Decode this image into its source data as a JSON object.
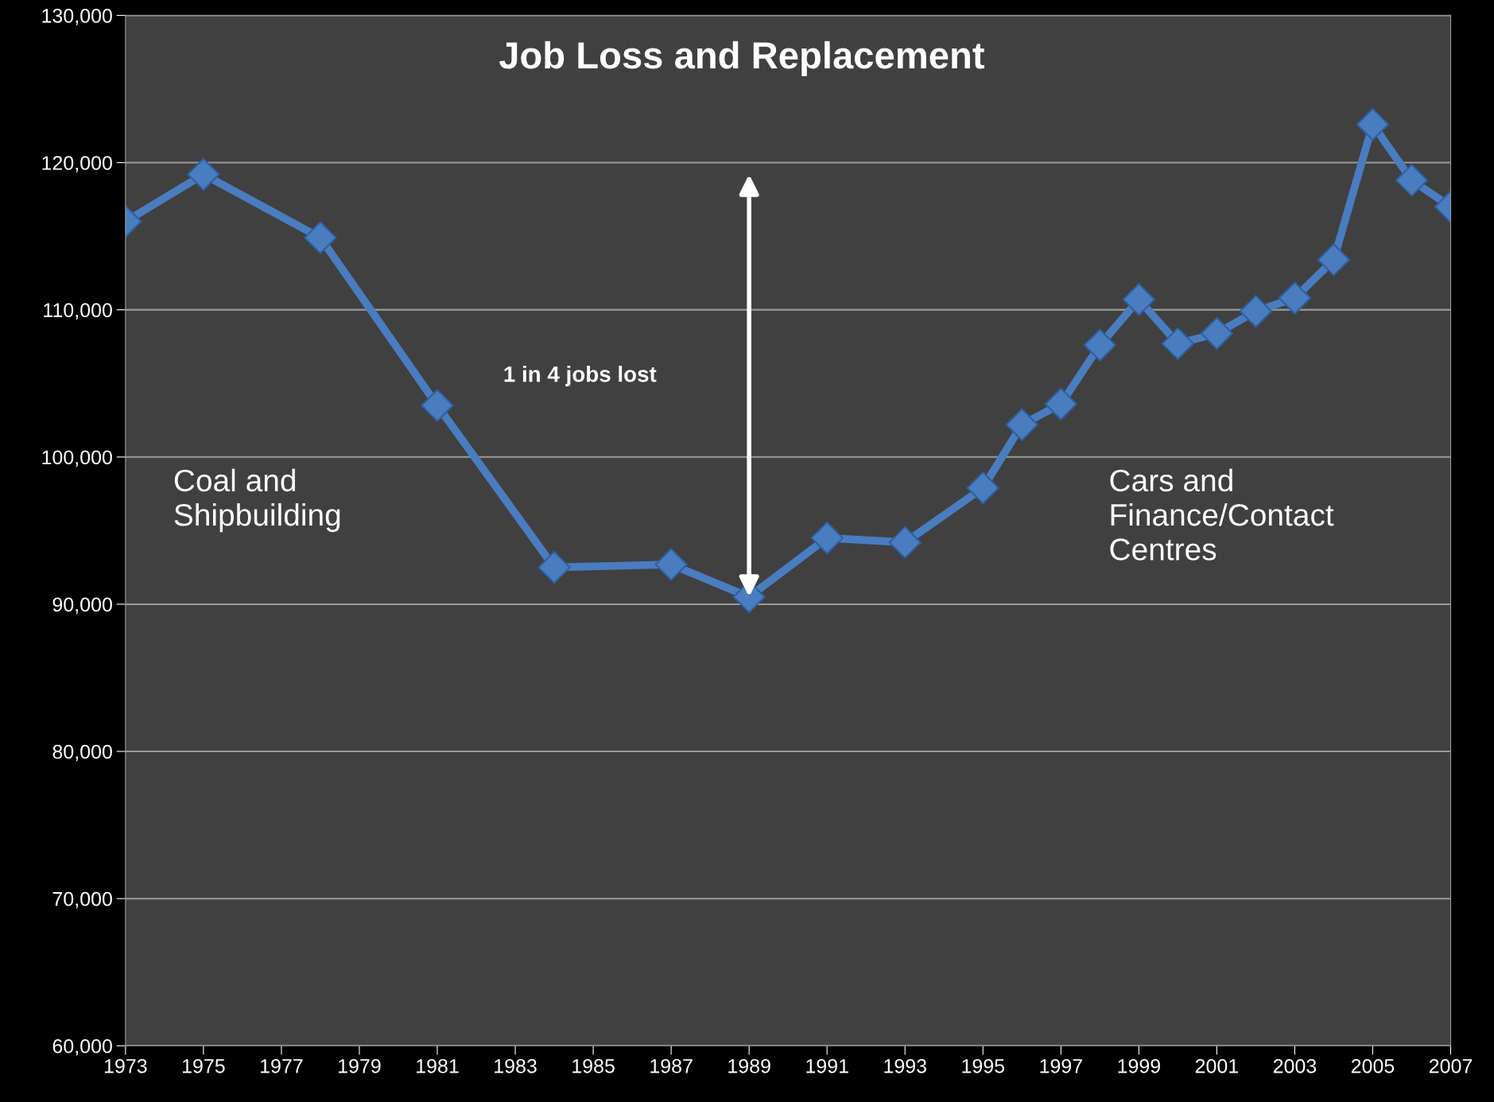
{
  "chart_data": {
    "type": "line",
    "title": "Job Loss and Replacement",
    "x": [
      1973,
      1975,
      1978,
      1981,
      1984,
      1987,
      1989,
      1991,
      1993,
      1995,
      1996,
      1997,
      1998,
      1999,
      2000,
      2001,
      2002,
      2003,
      2004,
      2005,
      2006,
      2007
    ],
    "series": [
      {
        "color": "#4a7cc0",
        "values": [
          116000,
          119200,
          114900,
          103500,
          92500,
          92700,
          90500,
          94500,
          94200,
          97900,
          102200,
          103600,
          107600,
          110700,
          107700,
          108400,
          109900,
          110800,
          113400,
          122600,
          118800,
          117000
        ]
      }
    ],
    "xlim": [
      1973,
      2007
    ],
    "xticks": [
      1973,
      1975,
      1977,
      1979,
      1981,
      1983,
      1985,
      1987,
      1989,
      1991,
      1993,
      1995,
      1997,
      1999,
      2001,
      2003,
      2005,
      2007
    ],
    "ylim": [
      60000,
      130000
    ],
    "yticks": [
      {
        "value": 60000,
        "label": "60,000"
      },
      {
        "value": 70000,
        "label": "70,000"
      },
      {
        "value": 80000,
        "label": "80,000"
      },
      {
        "value": 90000,
        "label": "90,000"
      },
      {
        "value": 100000,
        "label": "100,000"
      },
      {
        "value": 110000,
        "label": "110,000"
      },
      {
        "value": 120000,
        "label": "120,000"
      },
      {
        "value": 130000,
        "label": "130,000"
      }
    ],
    "grid": "y",
    "marker": "diamond",
    "line_style": "solid",
    "legend": false,
    "annotations": [
      "1 in 4 jobs lost",
      "Coal and\nShipbuilding",
      "Cars and\nFinance/Contact\nCentres"
    ]
  }
}
